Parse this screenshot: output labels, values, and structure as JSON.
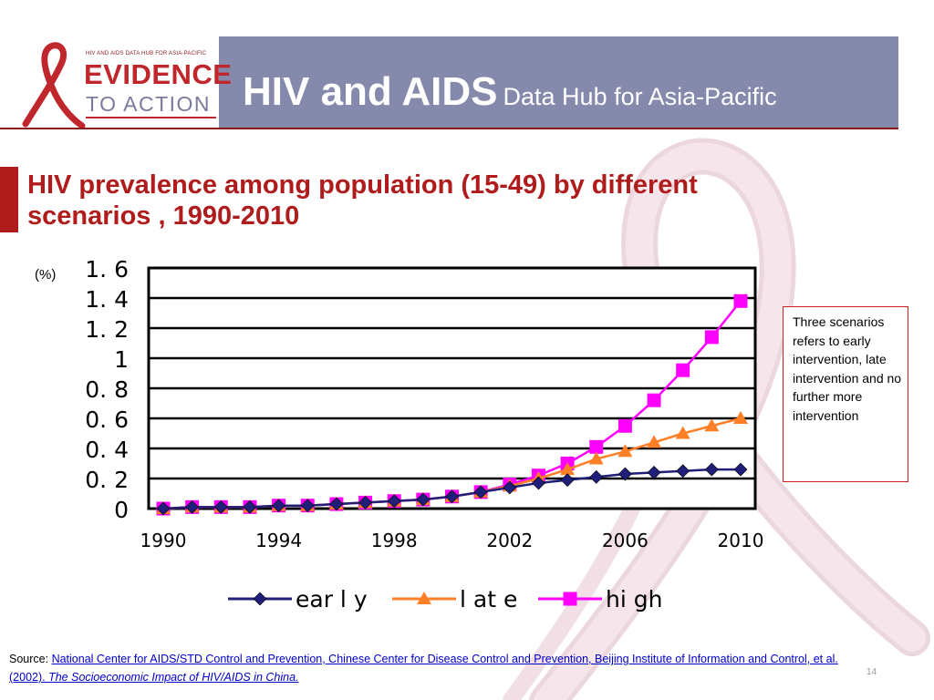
{
  "header": {
    "logo_small_text": "HIV AND AIDS DATA HUB FOR ASIA-PACIFIC",
    "logo_word1": "EVIDENCE",
    "logo_word2": "TO ACTION",
    "title_main": "HIV and AIDS",
    "title_sub": "Data Hub for Asia-Pacific"
  },
  "slide": {
    "title_line1": "HIV prevalence among population (15-49) by different",
    "title_line2": "scenarios , 1990-2010"
  },
  "chart_data": {
    "type": "line",
    "ylabel": "(%)",
    "ylim": [
      0,
      1.6
    ],
    "xlim": [
      1990,
      2010
    ],
    "yticks": [
      "1. 6",
      "1. 4",
      "1. 2",
      "1",
      "0. 8",
      "0. 6",
      "0. 4",
      "0. 2",
      "0"
    ],
    "xticks": [
      "1990",
      "1994",
      "1998",
      "2002",
      "2006",
      "2010"
    ],
    "grid": true,
    "legend_position": "bottom",
    "x": [
      1990,
      1991,
      1992,
      1993,
      1994,
      1995,
      1996,
      1997,
      1998,
      1999,
      2000,
      2001,
      2002,
      2003,
      2004,
      2005,
      2006,
      2007,
      2008,
      2009,
      2010
    ],
    "series": [
      {
        "name": "ear l y",
        "color": "#1f1f7a",
        "marker": "diamond",
        "values": [
          0.0,
          0.01,
          0.01,
          0.01,
          0.02,
          0.02,
          0.03,
          0.04,
          0.05,
          0.06,
          0.08,
          0.11,
          0.14,
          0.17,
          0.19,
          0.21,
          0.23,
          0.24,
          0.25,
          0.26,
          0.26
        ]
      },
      {
        "name": "l at e",
        "color": "#ff7f27",
        "marker": "triangle",
        "values": [
          0.0,
          0.01,
          0.01,
          0.01,
          0.02,
          0.02,
          0.03,
          0.04,
          0.05,
          0.06,
          0.08,
          0.11,
          0.15,
          0.2,
          0.26,
          0.33,
          0.38,
          0.44,
          0.5,
          0.55,
          0.6
        ]
      },
      {
        "name": "hi gh",
        "color": "#ff00ff",
        "marker": "square",
        "values": [
          0.0,
          0.01,
          0.01,
          0.01,
          0.02,
          0.02,
          0.03,
          0.04,
          0.05,
          0.06,
          0.08,
          0.11,
          0.16,
          0.22,
          0.3,
          0.41,
          0.55,
          0.72,
          0.92,
          1.14,
          1.38
        ]
      }
    ]
  },
  "note": {
    "text": "Three scenarios refers to early intervention, late intervention and no further more intervention"
  },
  "source": {
    "label": "Source: ",
    "link_text": "National Center for AIDS/STD Control and Prevention, Chinese Center for Disease Control and Prevention, Beijing Institute of Information and Control, et al. (2002). ",
    "link_title": "The Socioeconomic Impact of HIV/AIDS in China."
  },
  "page_number": "14"
}
